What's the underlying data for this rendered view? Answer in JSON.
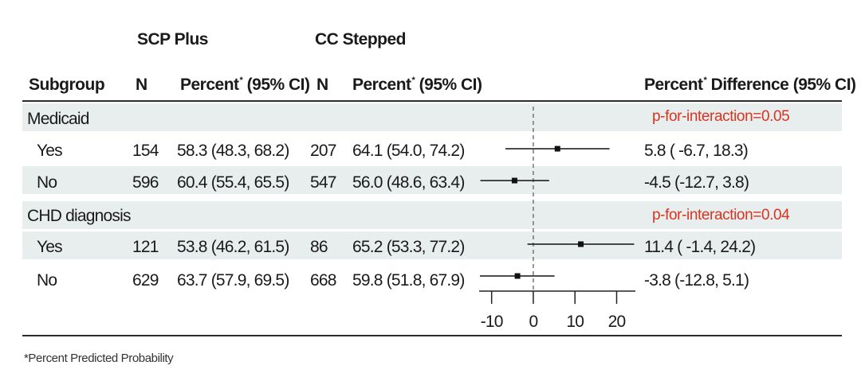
{
  "header": {
    "group1": "SCP Plus",
    "group2": "CC Stepped",
    "col_subgroup": "Subgroup",
    "col_n1": "N",
    "col_pct1": "Percent",
    "col_pct1_tail": " (95% CI)",
    "col_n2": "N",
    "col_pct2": "Percent",
    "col_pct2_tail": " (95% CI)",
    "col_diff": "Percent",
    "col_diff_tail": " Difference (95% CI)",
    "asterisk": "*"
  },
  "sections": [
    {
      "label": "Medicaid",
      "interaction": "p-for-interaction=0.05",
      "rows": [
        {
          "label": "Yes",
          "n1": "154",
          "ci1": "58.3 (48.3, 68.2)",
          "n2": "207",
          "ci2": "64.1 (54.0, 74.2)",
          "diff": "5.8 ( -6.7,  18.3)"
        },
        {
          "label": "No",
          "n1": "596",
          "ci1": "60.4 (55.4, 65.5)",
          "n2": "547",
          "ci2": "56.0 (48.6, 63.4)",
          "diff": "-4.5 (-12.7,   3.8)"
        }
      ]
    },
    {
      "label": "CHD diagnosis",
      "interaction": "p-for-interaction=0.04",
      "rows": [
        {
          "label": "Yes",
          "n1": "121",
          "ci1": "53.8 (46.2, 61.5)",
          "n2": "86",
          "ci2": "65.2 (53.3, 77.2)",
          "diff": "11.4 ( -1.4,  24.2)"
        },
        {
          "label": "No",
          "n1": "629",
          "ci1": "63.7 (57.9, 69.5)",
          "n2": "668",
          "ci2": "59.8 (51.8, 67.9)",
          "diff": "-3.8 (-12.8,   5.1)"
        }
      ]
    }
  ],
  "footnote": "*Percent Predicted Probability",
  "chart_data": {
    "type": "forest",
    "xlim": [
      -13,
      24.5
    ],
    "reference_line": 0,
    "ticks": [
      -10,
      0,
      10,
      20
    ],
    "tick_labels": [
      "-10",
      "0",
      "10",
      "20"
    ],
    "points": [
      {
        "label": "Medicaid Yes",
        "estimate": 5.8,
        "lower": -6.7,
        "upper": 18.3
      },
      {
        "label": "Medicaid No",
        "estimate": -4.5,
        "lower": -12.7,
        "upper": 3.8
      },
      {
        "label": "CHD diagnosis Yes",
        "estimate": 11.4,
        "lower": -1.4,
        "upper": 24.2
      },
      {
        "label": "CHD diagnosis No",
        "estimate": -3.8,
        "lower": -12.8,
        "upper": 5.1
      }
    ]
  },
  "colors": {
    "band": "#e8eeee",
    "interaction_text": "#d9341f",
    "marks": "#111111"
  }
}
